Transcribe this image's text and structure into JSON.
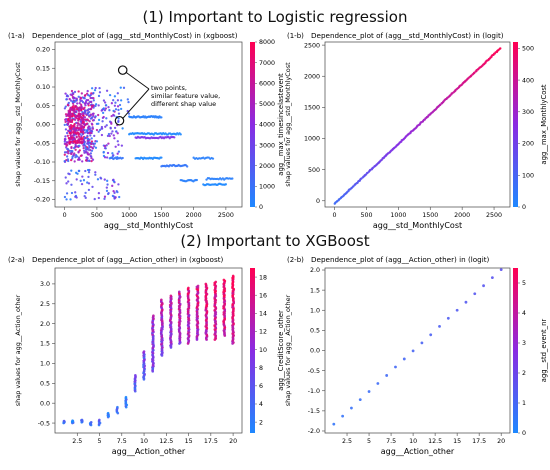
{
  "sections": [
    {
      "label": "(1)",
      "title": "Important to Logistic regression"
    },
    {
      "label": "(2)",
      "title": "Important to XGBoost"
    }
  ],
  "colors": {
    "cmap_low": "#1e88ff",
    "cmap_mid": "#8a2be2",
    "cmap_high": "#ff0052"
  },
  "chart_data": [
    {
      "id": "1-a",
      "type": "scatter",
      "panel_label": "(1-a)",
      "title": "Dependence_plot of (agg__std_MonthlyCost) in (xgboost)",
      "xlabel": "agg__std_MonthlyCost",
      "ylabel": "shap values for agg__std_MonthlyCost",
      "colorbar_label": "agg__max_timesincelastevent",
      "xlim": [
        -150,
        2750
      ],
      "ylim": [
        -0.22,
        0.22
      ],
      "xticks": [
        0,
        500,
        1000,
        1500,
        2000,
        2500
      ],
      "yticks": [
        -0.2,
        -0.15,
        -0.1,
        -0.05,
        0.0,
        0.05,
        0.1,
        0.15,
        0.2
      ],
      "colorbar_range": [
        0,
        8000
      ],
      "colorbar_ticks": [
        0,
        1000,
        2000,
        3000,
        4000,
        5000,
        6000,
        7000,
        8000
      ],
      "annotation": "two points, similar feature value, different shap value",
      "annotation_points": [
        {
          "x": 900,
          "y": 0.145
        },
        {
          "x": 850,
          "y": 0.01
        }
      ],
      "clusters": [
        {
          "x_min": 0,
          "x_max": 450,
          "y_min": -0.1,
          "y_max": 0.09,
          "n": 380,
          "c_min": 0.1,
          "c_max": 0.9
        },
        {
          "x_min": 50,
          "x_max": 300,
          "y_min": -0.05,
          "y_max": 0.05,
          "n": 200,
          "c_min": 0.6,
          "c_max": 1.0
        },
        {
          "x_min": 300,
          "x_max": 900,
          "y_min": -0.09,
          "y_max": 0.06,
          "n": 120,
          "c_min": 0.0,
          "c_max": 0.7
        },
        {
          "x_min": 0,
          "x_max": 500,
          "y_min": -0.2,
          "y_max": -0.12,
          "n": 40,
          "c_min": 0.0,
          "c_max": 0.4
        },
        {
          "x_min": 500,
          "x_max": 850,
          "y_min": -0.2,
          "y_max": -0.14,
          "n": 30,
          "c_min": 0.0,
          "c_max": 0.6
        },
        {
          "x_min": 400,
          "x_max": 1000,
          "y_min": 0.02,
          "y_max": 0.1,
          "n": 30,
          "c_min": 0.0,
          "c_max": 0.4
        }
      ],
      "segments": [
        {
          "x0": 1000,
          "x1": 1500,
          "y": 0.02,
          "n": 35,
          "c": 0.05
        },
        {
          "x0": 1000,
          "x1": 1800,
          "y": -0.025,
          "n": 45,
          "c": 0.0
        },
        {
          "x0": 1100,
          "x1": 1700,
          "y": -0.035,
          "n": 35,
          "c": 0.45
        },
        {
          "x0": 1100,
          "x1": 1500,
          "y": -0.09,
          "n": 25,
          "c": 0.0
        },
        {
          "x0": 1500,
          "x1": 1900,
          "y": -0.11,
          "n": 25,
          "c": 0.1
        },
        {
          "x0": 1800,
          "x1": 2050,
          "y": -0.15,
          "n": 15,
          "c": 0.05
        },
        {
          "x0": 2000,
          "x1": 2300,
          "y": -0.09,
          "n": 15,
          "c": 0.05
        },
        {
          "x0": 2150,
          "x1": 2500,
          "y": -0.16,
          "n": 20,
          "c": 0.0
        },
        {
          "x0": 2200,
          "x1": 2600,
          "y": -0.145,
          "n": 20,
          "c": 0.05
        },
        {
          "x0": 700,
          "x1": 900,
          "y": -0.09,
          "n": 12,
          "c": 0.1
        }
      ]
    },
    {
      "id": "1-b",
      "type": "scatter",
      "panel_label": "(1-b)",
      "title": "Dependence_plot of (agg__std_MonthlyCost) in (logit)",
      "xlabel": "agg__std_MonthlyCost",
      "ylabel": "shap values for agg__std_MonthlyCost",
      "colorbar_label": "agg__max_MonthlyCost",
      "xlim": [
        -150,
        2750
      ],
      "ylim": [
        -100,
        2550
      ],
      "xticks": [
        0,
        500,
        1000,
        1500,
        2000,
        2500
      ],
      "yticks": [
        0,
        500,
        1000,
        1500,
        2000,
        2500
      ],
      "colorbar_range": [
        0,
        520
      ],
      "colorbar_ticks": [
        0,
        100,
        200,
        300,
        400,
        500
      ],
      "line_x": [
        0,
        2600
      ],
      "line_y": [
        -50,
        2450
      ],
      "line_n": 220
    },
    {
      "id": "2-a",
      "type": "scatter",
      "panel_label": "(2-a)",
      "title": "Dependence_plot of (agg__Action_other) in (xgboost)",
      "xlabel": "agg__Action_other",
      "ylabel": "shap values for agg__Action_other",
      "colorbar_label": "agg__CreditScore_other",
      "xlim": [
        0,
        21
      ],
      "ylim": [
        -0.75,
        3.4
      ],
      "xticks": [
        2.5,
        5.0,
        7.5,
        10.0,
        12.5,
        15.0,
        17.5,
        20.0
      ],
      "yticks": [
        -0.5,
        0.0,
        0.5,
        1.0,
        1.5,
        2.0,
        2.5,
        3.0
      ],
      "colorbar_range": [
        0.8,
        19
      ],
      "colorbar_ticks": [
        2,
        4,
        6,
        8,
        10,
        12,
        14,
        16,
        18
      ],
      "columns": [
        {
          "x": 1,
          "y_min": -0.5,
          "y_max": -0.45,
          "c": 0.1
        },
        {
          "x": 2,
          "y_min": -0.5,
          "y_max": -0.44,
          "c": 0.05
        },
        {
          "x": 3,
          "y_min": -0.48,
          "y_max": -0.42,
          "c": 0.1
        },
        {
          "x": 4,
          "y_min": -0.55,
          "y_max": -0.48,
          "c": 0.05
        },
        {
          "x": 5,
          "y_min": -0.55,
          "y_max": -0.42,
          "c": 0.1
        },
        {
          "x": 6,
          "y_min": -0.35,
          "y_max": -0.25,
          "c": 0.05
        },
        {
          "x": 7,
          "y_min": -0.25,
          "y_max": -0.1,
          "c": 0.1
        },
        {
          "x": 8,
          "y_min": -0.1,
          "y_max": 0.15,
          "c": 0.1
        },
        {
          "x": 9,
          "y_min": 0.3,
          "y_max": 0.7,
          "c": 0.2
        },
        {
          "x": 10,
          "y_min": 0.6,
          "y_max": 1.3,
          "c": 0.25
        },
        {
          "x": 11,
          "y_min": 0.8,
          "y_max": 2.2,
          "c": 0.35
        },
        {
          "x": 12,
          "y_min": 1.2,
          "y_max": 2.6,
          "c": 0.45
        },
        {
          "x": 13,
          "y_min": 1.4,
          "y_max": 2.7,
          "c": 0.5
        },
        {
          "x": 14,
          "y_min": 1.5,
          "y_max": 2.8,
          "c": 0.55
        },
        {
          "x": 15,
          "y_min": 1.5,
          "y_max": 2.9,
          "c": 0.6
        },
        {
          "x": 16,
          "y_min": 1.6,
          "y_max": 2.95,
          "c": 0.65
        },
        {
          "x": 17,
          "y_min": 1.6,
          "y_max": 3.0,
          "c": 0.7
        },
        {
          "x": 18,
          "y_min": 1.6,
          "y_max": 3.05,
          "c": 0.7
        },
        {
          "x": 19,
          "y_min": 1.7,
          "y_max": 3.1,
          "c": 0.75
        },
        {
          "x": 20,
          "y_min": 1.5,
          "y_max": 3.2,
          "c": 0.75
        }
      ]
    },
    {
      "id": "2-b",
      "type": "scatter",
      "panel_label": "(2-b)",
      "title": "Dependence_plot of (agg__Action_other) in (logit)",
      "xlabel": "agg__Action_other",
      "ylabel": "shap values for agg__Action_other",
      "colorbar_label": "agg__std_event_nr",
      "xlim": [
        0,
        21
      ],
      "ylim": [
        -2.05,
        2.05
      ],
      "xticks": [
        2.5,
        5.0,
        7.5,
        10.0,
        12.5,
        15.0,
        17.5,
        20.0
      ],
      "yticks": [
        -2.0,
        -1.5,
        -1.0,
        -0.5,
        0.0,
        0.5,
        1.0,
        1.5,
        2.0
      ],
      "colorbar_range": [
        0,
        5.5
      ],
      "colorbar_ticks": [
        0,
        1,
        2,
        3,
        4,
        5
      ],
      "x": [
        1,
        2,
        3,
        4,
        5,
        6,
        7,
        8,
        9,
        10,
        11,
        12,
        13,
        14,
        15,
        16,
        17,
        18,
        19,
        20
      ],
      "y": [
        -1.83,
        -1.63,
        -1.43,
        -1.22,
        -1.02,
        -0.82,
        -0.62,
        -0.41,
        -0.21,
        -0.01,
        0.19,
        0.39,
        0.6,
        0.8,
        1.0,
        1.2,
        1.41,
        1.61,
        1.81,
        2.01
      ]
    }
  ]
}
